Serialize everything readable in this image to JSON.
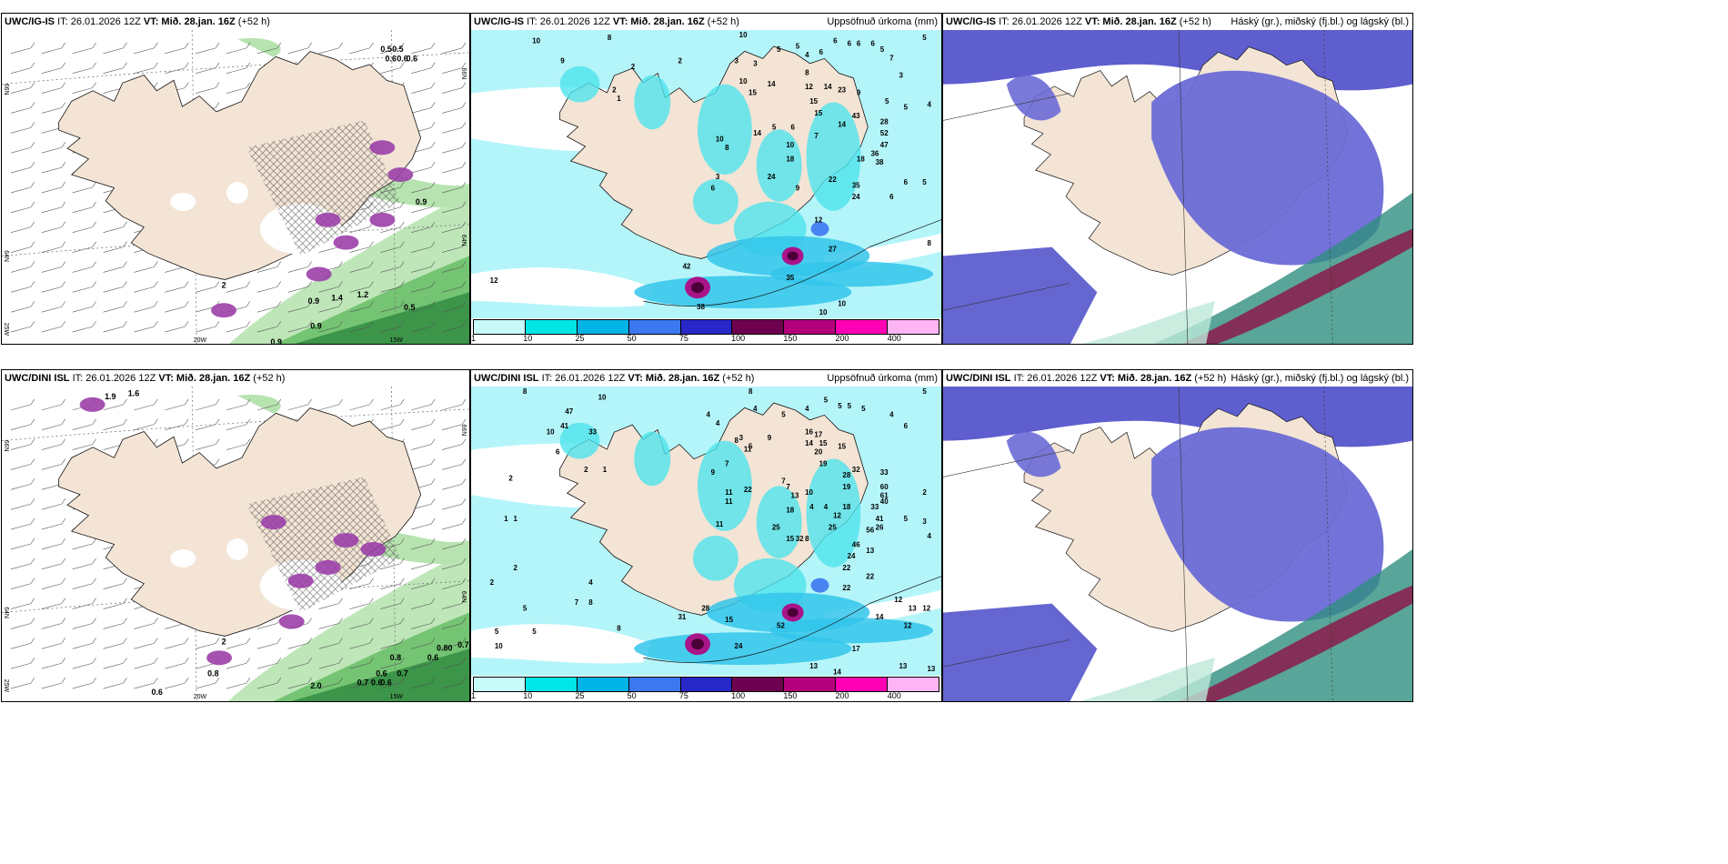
{
  "panels": [
    {
      "id": "wind-top",
      "model": "UWC/IG-IS",
      "it": "IT: 26.01.2026 12Z",
      "vt_label": "VT:",
      "vt": "Mið. 28.jan. 16Z",
      "lead": "(+52 h)",
      "right": "",
      "values": [
        {
          "t": "0.5",
          "x": 0.81,
          "y": 0.07
        },
        {
          "t": "0.5",
          "x": 0.835,
          "y": 0.07
        },
        {
          "t": "0.6",
          "x": 0.82,
          "y": 0.1
        },
        {
          "t": "0.6",
          "x": 0.845,
          "y": 0.1
        },
        {
          "t": "0.6",
          "x": 0.865,
          "y": 0.1
        },
        {
          "t": "0.9",
          "x": 0.885,
          "y": 0.555
        },
        {
          "t": "0.9",
          "x": 0.655,
          "y": 0.87
        },
        {
          "t": "1.4",
          "x": 0.705,
          "y": 0.86
        },
        {
          "t": "1.2",
          "x": 0.76,
          "y": 0.85
        },
        {
          "t": "0.5",
          "x": 0.86,
          "y": 0.89
        },
        {
          "t": "0.9",
          "x": 0.66,
          "y": 0.95
        },
        {
          "t": "0.9",
          "x": 0.575,
          "y": 1.0
        },
        {
          "t": "2",
          "x": 0.47,
          "y": 0.82
        }
      ],
      "axis": [
        {
          "t": "20W",
          "x": 0.41,
          "y": 1.01
        },
        {
          "t": "15W",
          "x": 0.83,
          "y": 1.01
        }
      ],
      "lat": [
        {
          "t": "66N",
          "y": 0.17
        },
        {
          "t": "64N",
          "y": 0.7
        }
      ],
      "lat_right": [
        {
          "t": "66N",
          "y": 0.12
        },
        {
          "t": "64N",
          "y": 0.65
        }
      ],
      "lonleft": [
        {
          "t": "25W",
          "y": 0.93
        }
      ]
    },
    {
      "id": "precip-top",
      "model": "UWC/IG-IS",
      "it": "IT: 26.01.2026 12Z",
      "vt_label": "VT:",
      "vt": "Mið. 28.jan. 16Z",
      "lead": "(+52 h)",
      "right": "Uppsöfnuð úrkoma (mm)",
      "values": [
        {
          "t": "10",
          "x": 0.13,
          "y": 0.02
        },
        {
          "t": "8",
          "x": 0.29,
          "y": 0.01
        },
        {
          "t": "10",
          "x": 0.57,
          "y": 0.0
        },
        {
          "t": "2",
          "x": 0.34,
          "y": 0.11
        },
        {
          "t": "2",
          "x": 0.44,
          "y": 0.09
        },
        {
          "t": "3",
          "x": 0.56,
          "y": 0.09
        },
        {
          "t": "3",
          "x": 0.6,
          "y": 0.1
        },
        {
          "t": "5",
          "x": 0.65,
          "y": 0.05
        },
        {
          "t": "5",
          "x": 0.69,
          "y": 0.04
        },
        {
          "t": "4",
          "x": 0.71,
          "y": 0.07
        },
        {
          "t": "6",
          "x": 0.74,
          "y": 0.06
        },
        {
          "t": "6",
          "x": 0.77,
          "y": 0.02
        },
        {
          "t": "6",
          "x": 0.8,
          "y": 0.03
        },
        {
          "t": "6",
          "x": 0.82,
          "y": 0.03
        },
        {
          "t": "6",
          "x": 0.85,
          "y": 0.03
        },
        {
          "t": "5",
          "x": 0.87,
          "y": 0.05
        },
        {
          "t": "7",
          "x": 0.89,
          "y": 0.08
        },
        {
          "t": "5",
          "x": 0.96,
          "y": 0.01
        },
        {
          "t": "3",
          "x": 0.91,
          "y": 0.14
        },
        {
          "t": "10",
          "x": 0.57,
          "y": 0.16
        },
        {
          "t": "15",
          "x": 0.59,
          "y": 0.2
        },
        {
          "t": "14",
          "x": 0.63,
          "y": 0.17
        },
        {
          "t": "8",
          "x": 0.71,
          "y": 0.13
        },
        {
          "t": "12",
          "x": 0.71,
          "y": 0.18
        },
        {
          "t": "14",
          "x": 0.75,
          "y": 0.18
        },
        {
          "t": "23",
          "x": 0.78,
          "y": 0.19
        },
        {
          "t": "15",
          "x": 0.72,
          "y": 0.23
        },
        {
          "t": "15",
          "x": 0.73,
          "y": 0.27
        },
        {
          "t": "9",
          "x": 0.82,
          "y": 0.2
        },
        {
          "t": "5",
          "x": 0.88,
          "y": 0.23
        },
        {
          "t": "5",
          "x": 0.92,
          "y": 0.25
        },
        {
          "t": "4",
          "x": 0.97,
          "y": 0.24
        },
        {
          "t": "43",
          "x": 0.81,
          "y": 0.28
        },
        {
          "t": "28",
          "x": 0.87,
          "y": 0.3
        },
        {
          "t": "52",
          "x": 0.87,
          "y": 0.34
        },
        {
          "t": "47",
          "x": 0.87,
          "y": 0.38
        },
        {
          "t": "36",
          "x": 0.85,
          "y": 0.41
        },
        {
          "t": "38",
          "x": 0.86,
          "y": 0.44
        },
        {
          "t": "18",
          "x": 0.82,
          "y": 0.43
        },
        {
          "t": "14",
          "x": 0.78,
          "y": 0.31
        },
        {
          "t": "7",
          "x": 0.73,
          "y": 0.35
        },
        {
          "t": "6",
          "x": 0.68,
          "y": 0.32
        },
        {
          "t": "5",
          "x": 0.64,
          "y": 0.32
        },
        {
          "t": "10",
          "x": 0.67,
          "y": 0.38
        },
        {
          "t": "18",
          "x": 0.67,
          "y": 0.43
        },
        {
          "t": "14",
          "x": 0.6,
          "y": 0.34
        },
        {
          "t": "10",
          "x": 0.52,
          "y": 0.36
        },
        {
          "t": "8",
          "x": 0.54,
          "y": 0.39
        },
        {
          "t": "3",
          "x": 0.52,
          "y": 0.49
        },
        {
          "t": "6",
          "x": 0.51,
          "y": 0.53
        },
        {
          "t": "24",
          "x": 0.63,
          "y": 0.49
        },
        {
          "t": "9",
          "x": 0.69,
          "y": 0.53
        },
        {
          "t": "22",
          "x": 0.76,
          "y": 0.5
        },
        {
          "t": "35",
          "x": 0.81,
          "y": 0.52
        },
        {
          "t": "24",
          "x": 0.81,
          "y": 0.56
        },
        {
          "t": "6",
          "x": 0.89,
          "y": 0.56
        },
        {
          "t": "6",
          "x": 0.92,
          "y": 0.51
        },
        {
          "t": "5",
          "x": 0.96,
          "y": 0.51
        },
        {
          "t": "12",
          "x": 0.73,
          "y": 0.64
        },
        {
          "t": "8",
          "x": 0.97,
          "y": 0.72
        },
        {
          "t": "27",
          "x": 0.76,
          "y": 0.74
        },
        {
          "t": "35",
          "x": 0.67,
          "y": 0.84
        },
        {
          "t": "12",
          "x": 0.04,
          "y": 0.85
        },
        {
          "t": "42",
          "x": 0.45,
          "y": 0.8
        },
        {
          "t": "38",
          "x": 0.48,
          "y": 0.94
        },
        {
          "t": "10",
          "x": 0.78,
          "y": 0.93
        },
        {
          "t": "10",
          "x": 0.74,
          "y": 0.96
        },
        {
          "t": "9",
          "x": 0.19,
          "y": 0.09
        },
        {
          "t": "2",
          "x": 0.3,
          "y": 0.19
        },
        {
          "t": "1",
          "x": 0.31,
          "y": 0.22
        }
      ]
    },
    {
      "id": "cloud-top",
      "model": "UWC/IG-IS",
      "it": "IT: 26.01.2026 12Z",
      "vt_label": "VT:",
      "vt": "Mið. 28.jan. 16Z",
      "lead": "(+52 h)",
      "right": "Háský (gr.), miðský (fj.bl.) og lágský (bl.)"
    },
    {
      "id": "wind-bottom",
      "model": "UWC/DINI ISL",
      "it": "IT: 26.01.2026 12Z",
      "vt_label": "VT:",
      "vt": "Mið. 28.jan. 16Z",
      "lead": "(+52 h)",
      "right": "",
      "values": [
        {
          "t": "1.9",
          "x": 0.22,
          "y": 0.04
        },
        {
          "t": "1.6",
          "x": 0.27,
          "y": 0.03
        },
        {
          "t": "0.8",
          "x": 0.83,
          "y": 0.87
        },
        {
          "t": "0.80",
          "x": 0.93,
          "y": 0.84
        },
        {
          "t": "0.7",
          "x": 0.975,
          "y": 0.83
        },
        {
          "t": "0.6",
          "x": 0.91,
          "y": 0.87
        },
        {
          "t": "0.6",
          "x": 0.8,
          "y": 0.92
        },
        {
          "t": "0.7",
          "x": 0.845,
          "y": 0.92
        },
        {
          "t": "0.7",
          "x": 0.76,
          "y": 0.95
        },
        {
          "t": "0.6",
          "x": 0.79,
          "y": 0.95
        },
        {
          "t": "0.6",
          "x": 0.81,
          "y": 0.95
        },
        {
          "t": "2.0",
          "x": 0.66,
          "y": 0.96
        },
        {
          "t": "0.8",
          "x": 0.44,
          "y": 0.92
        },
        {
          "t": "0.6",
          "x": 0.32,
          "y": 0.98
        },
        {
          "t": "2",
          "x": 0.47,
          "y": 0.82
        }
      ],
      "axis": [
        {
          "t": "20W",
          "x": 0.41,
          "y": 1.01
        },
        {
          "t": "15W",
          "x": 0.83,
          "y": 1.01
        }
      ],
      "lat": [
        {
          "t": "66N",
          "y": 0.17
        },
        {
          "t": "64N",
          "y": 0.7
        }
      ],
      "lat_right": [
        {
          "t": "66N",
          "y": 0.12
        },
        {
          "t": "64N",
          "y": 0.65
        }
      ],
      "lonleft": [
        {
          "t": "25W",
          "y": 0.93
        }
      ]
    },
    {
      "id": "precip-bottom",
      "model": "UWC/DINI ISL",
      "it": "IT: 26.01.2026 12Z",
      "vt_label": "VT:",
      "vt": "Mið. 28.jan. 16Z",
      "lead": "(+52 h)",
      "right": "Uppsöfnuð úrkoma (mm)",
      "values": [
        {
          "t": "8",
          "x": 0.11,
          "y": 0.0
        },
        {
          "t": "10",
          "x": 0.27,
          "y": 0.02
        },
        {
          "t": "8",
          "x": 0.59,
          "y": 0.0
        },
        {
          "t": "47",
          "x": 0.2,
          "y": 0.07
        },
        {
          "t": "41",
          "x": 0.19,
          "y": 0.12
        },
        {
          "t": "10",
          "x": 0.16,
          "y": 0.14
        },
        {
          "t": "33",
          "x": 0.25,
          "y": 0.14
        },
        {
          "t": "6",
          "x": 0.18,
          "y": 0.21
        },
        {
          "t": "2",
          "x": 0.08,
          "y": 0.3
        },
        {
          "t": "1",
          "x": 0.28,
          "y": 0.27
        },
        {
          "t": "2",
          "x": 0.24,
          "y": 0.27
        },
        {
          "t": "1",
          "x": 0.07,
          "y": 0.44
        },
        {
          "t": "1",
          "x": 0.09,
          "y": 0.44
        },
        {
          "t": "2",
          "x": 0.09,
          "y": 0.61
        },
        {
          "t": "2",
          "x": 0.04,
          "y": 0.66
        },
        {
          "t": "4",
          "x": 0.25,
          "y": 0.66
        },
        {
          "t": "5",
          "x": 0.11,
          "y": 0.75
        },
        {
          "t": "7",
          "x": 0.22,
          "y": 0.73
        },
        {
          "t": "8",
          "x": 0.25,
          "y": 0.73
        },
        {
          "t": "5",
          "x": 0.05,
          "y": 0.83
        },
        {
          "t": "5",
          "x": 0.13,
          "y": 0.83
        },
        {
          "t": "10",
          "x": 0.05,
          "y": 0.88
        },
        {
          "t": "8",
          "x": 0.31,
          "y": 0.82
        },
        {
          "t": "4",
          "x": 0.5,
          "y": 0.08
        },
        {
          "t": "4",
          "x": 0.52,
          "y": 0.11
        },
        {
          "t": "4",
          "x": 0.6,
          "y": 0.06
        },
        {
          "t": "5",
          "x": 0.66,
          "y": 0.08
        },
        {
          "t": "4",
          "x": 0.71,
          "y": 0.06
        },
        {
          "t": "5",
          "x": 0.75,
          "y": 0.03
        },
        {
          "t": "5",
          "x": 0.78,
          "y": 0.05
        },
        {
          "t": "5",
          "x": 0.8,
          "y": 0.05
        },
        {
          "t": "5",
          "x": 0.83,
          "y": 0.06
        },
        {
          "t": "4",
          "x": 0.89,
          "y": 0.08
        },
        {
          "t": "6",
          "x": 0.92,
          "y": 0.12
        },
        {
          "t": "5",
          "x": 0.96,
          "y": 0.0
        },
        {
          "t": "3",
          "x": 0.57,
          "y": 0.16
        },
        {
          "t": "5",
          "x": 0.59,
          "y": 0.19
        },
        {
          "t": "8",
          "x": 0.56,
          "y": 0.17
        },
        {
          "t": "11",
          "x": 0.58,
          "y": 0.2
        },
        {
          "t": "9",
          "x": 0.63,
          "y": 0.16
        },
        {
          "t": "16",
          "x": 0.71,
          "y": 0.14
        },
        {
          "t": "17",
          "x": 0.73,
          "y": 0.15
        },
        {
          "t": "14",
          "x": 0.71,
          "y": 0.18
        },
        {
          "t": "15",
          "x": 0.74,
          "y": 0.18
        },
        {
          "t": "20",
          "x": 0.73,
          "y": 0.21
        },
        {
          "t": "19",
          "x": 0.74,
          "y": 0.25
        },
        {
          "t": "15",
          "x": 0.78,
          "y": 0.19
        },
        {
          "t": "32",
          "x": 0.81,
          "y": 0.27
        },
        {
          "t": "28",
          "x": 0.79,
          "y": 0.29
        },
        {
          "t": "33",
          "x": 0.87,
          "y": 0.28
        },
        {
          "t": "60",
          "x": 0.87,
          "y": 0.33
        },
        {
          "t": "61",
          "x": 0.87,
          "y": 0.36
        },
        {
          "t": "40",
          "x": 0.87,
          "y": 0.38
        },
        {
          "t": "33",
          "x": 0.85,
          "y": 0.4
        },
        {
          "t": "41",
          "x": 0.86,
          "y": 0.44
        },
        {
          "t": "56",
          "x": 0.84,
          "y": 0.48
        },
        {
          "t": "26",
          "x": 0.86,
          "y": 0.47
        },
        {
          "t": "19",
          "x": 0.79,
          "y": 0.33
        },
        {
          "t": "18",
          "x": 0.79,
          "y": 0.4
        },
        {
          "t": "12",
          "x": 0.77,
          "y": 0.43
        },
        {
          "t": "10",
          "x": 0.71,
          "y": 0.35
        },
        {
          "t": "4",
          "x": 0.72,
          "y": 0.4
        },
        {
          "t": "4",
          "x": 0.75,
          "y": 0.4
        },
        {
          "t": "7",
          "x": 0.66,
          "y": 0.31
        },
        {
          "t": "7",
          "x": 0.67,
          "y": 0.33
        },
        {
          "t": "13",
          "x": 0.68,
          "y": 0.36
        },
        {
          "t": "22",
          "x": 0.58,
          "y": 0.34
        },
        {
          "t": "11",
          "x": 0.54,
          "y": 0.35
        },
        {
          "t": "11",
          "x": 0.54,
          "y": 0.38
        },
        {
          "t": "9",
          "x": 0.51,
          "y": 0.28
        },
        {
          "t": "7",
          "x": 0.54,
          "y": 0.25
        },
        {
          "t": "18",
          "x": 0.67,
          "y": 0.41
        },
        {
          "t": "25",
          "x": 0.64,
          "y": 0.47
        },
        {
          "t": "11",
          "x": 0.52,
          "y": 0.46
        },
        {
          "t": "15",
          "x": 0.67,
          "y": 0.51
        },
        {
          "t": "32",
          "x": 0.69,
          "y": 0.51
        },
        {
          "t": "8",
          "x": 0.71,
          "y": 0.51
        },
        {
          "t": "25",
          "x": 0.76,
          "y": 0.47
        },
        {
          "t": "46",
          "x": 0.81,
          "y": 0.53
        },
        {
          "t": "24",
          "x": 0.8,
          "y": 0.57
        },
        {
          "t": "5",
          "x": 0.92,
          "y": 0.44
        },
        {
          "t": "2",
          "x": 0.96,
          "y": 0.35
        },
        {
          "t": "3",
          "x": 0.96,
          "y": 0.45
        },
        {
          "t": "4",
          "x": 0.97,
          "y": 0.5
        },
        {
          "t": "22",
          "x": 0.79,
          "y": 0.61
        },
        {
          "t": "22",
          "x": 0.84,
          "y": 0.64
        },
        {
          "t": "22",
          "x": 0.79,
          "y": 0.68
        },
        {
          "t": "12",
          "x": 0.9,
          "y": 0.72
        },
        {
          "t": "13",
          "x": 0.93,
          "y": 0.75
        },
        {
          "t": "12",
          "x": 0.96,
          "y": 0.75
        },
        {
          "t": "14",
          "x": 0.86,
          "y": 0.78
        },
        {
          "t": "12",
          "x": 0.92,
          "y": 0.81
        },
        {
          "t": "17",
          "x": 0.81,
          "y": 0.89
        },
        {
          "t": "13",
          "x": 0.72,
          "y": 0.95
        },
        {
          "t": "14",
          "x": 0.77,
          "y": 0.97
        },
        {
          "t": "13",
          "x": 0.97,
          "y": 0.96
        },
        {
          "t": "13",
          "x": 0.91,
          "y": 0.95
        },
        {
          "t": "28",
          "x": 0.49,
          "y": 0.75
        },
        {
          "t": "31",
          "x": 0.44,
          "y": 0.78
        },
        {
          "t": "15",
          "x": 0.54,
          "y": 0.79
        },
        {
          "t": "24",
          "x": 0.56,
          "y": 0.88
        },
        {
          "t": "52",
          "x": 0.65,
          "y": 0.81
        },
        {
          "t": "13",
          "x": 0.84,
          "y": 0.55
        }
      ]
    },
    {
      "id": "cloud-bottom",
      "model": "UWC/DINI ISL",
      "it": "IT: 26.01.2026 12Z",
      "vt_label": "VT:",
      "vt": "Mið. 28.jan. 16Z",
      "lead": "(+52 h)",
      "right": "Háský (gr.), miðský (fj.bl.) og lágský (bl.)"
    }
  ],
  "legend": {
    "labels": [
      "1",
      "10",
      "25",
      "50",
      "75",
      "100",
      "150",
      "200",
      "400"
    ],
    "colors": [
      "#c8fafa",
      "#00e6e6",
      "#00b4e6",
      "#3c78f0",
      "#2828c8",
      "#6e0050",
      "#b4007d",
      "#ff00b4",
      "#ffb4f5"
    ]
  },
  "colors": {
    "land": "#f3e4d5",
    "sea_precip": "#b4f5fa",
    "green_light": "#b7e3b0",
    "green_mid": "#6cc06b",
    "green_dark": "#2e8a3e",
    "purple": "#9b3fa8",
    "cloud_high": "#5555cc",
    "cloud_mid": "#6a6ad6",
    "maroon": "#8b1a4a",
    "teal": "#2f8f7f"
  }
}
